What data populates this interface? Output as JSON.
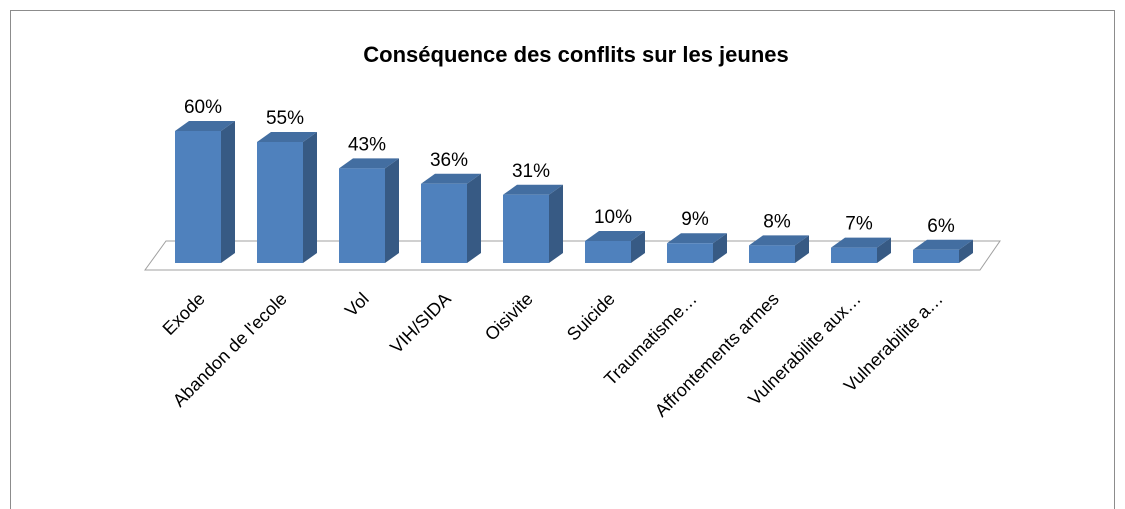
{
  "chart_data": {
    "type": "bar3d",
    "title": "Conséquence des conflits sur les jeunes",
    "categories": [
      "Exode",
      "Abandon de l'ecole",
      "Vol",
      "VIH/SIDA",
      "Oisivite",
      "Suicide",
      "Traumatisme…",
      "Affrontements armes",
      "Vulnerabilite aux…",
      "Vulnerabilite a…"
    ],
    "values": [
      60,
      55,
      43,
      36,
      31,
      10,
      9,
      8,
      7,
      6
    ],
    "value_labels": [
      "60%",
      "55%",
      "43%",
      "36%",
      "31%",
      "10%",
      "9%",
      "8%",
      "7%",
      "6%"
    ],
    "color": "#4f81bd"
  }
}
